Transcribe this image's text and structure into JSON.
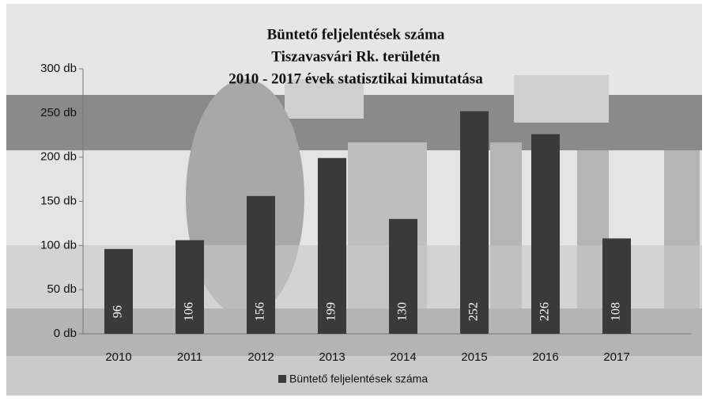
{
  "chart_data": {
    "type": "bar",
    "title": [
      "Büntető feljelentések száma",
      "Tiszavasvári Rk. területén",
      "2010 - 2017 évek statisztikai kimutatása"
    ],
    "categories": [
      "2010",
      "2011",
      "2012",
      "2013",
      "2014",
      "2015",
      "2016",
      "2017"
    ],
    "series": [
      {
        "name": "Büntető feljelentések száma",
        "color": "#3a3a3a",
        "values": [
          96,
          106,
          156,
          199,
          130,
          252,
          226,
          108
        ]
      }
    ],
    "ylim": [
      0,
      300
    ],
    "yticks": [
      {
        "value": 0,
        "label": "0 db"
      },
      {
        "value": 50,
        "label": "50 db"
      },
      {
        "value": 100,
        "label": "100 db"
      },
      {
        "value": 150,
        "label": "150 db"
      },
      {
        "value": 200,
        "label": "200 db"
      },
      {
        "value": 250,
        "label": "250 db"
      },
      {
        "value": 300,
        "label": "300 db"
      }
    ],
    "grid": false,
    "legend": "bottom"
  }
}
